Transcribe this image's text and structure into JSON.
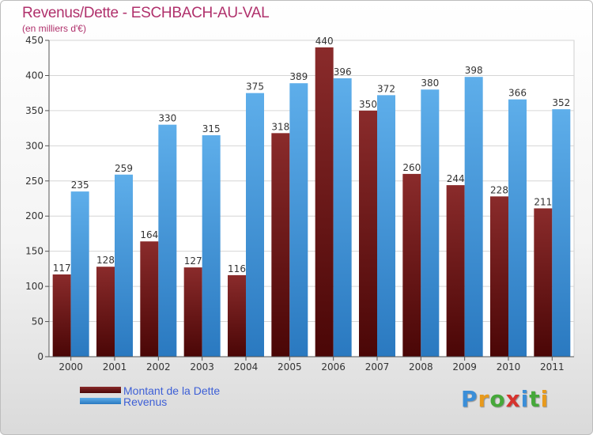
{
  "chart_data": {
    "type": "bar",
    "title": "Revenus/Dette - ESCHBACH-AU-VAL",
    "subtitle": "(en milliers d'€)",
    "categories": [
      "2000",
      "2001",
      "2002",
      "2003",
      "2004",
      "2005",
      "2006",
      "2007",
      "2008",
      "2009",
      "2010",
      "2011"
    ],
    "series": [
      {
        "name": "Montant de la Dette",
        "color": "#7a1f1f",
        "values": [
          117,
          128,
          164,
          127,
          116,
          318,
          440,
          350,
          260,
          244,
          228,
          211
        ]
      },
      {
        "name": "Revenus",
        "color": "#3f97d8",
        "values": [
          235,
          259,
          330,
          315,
          375,
          389,
          396,
          372,
          380,
          398,
          366,
          352
        ]
      }
    ],
    "ylim": [
      0,
      450
    ],
    "yticks": [
      0,
      50,
      100,
      150,
      200,
      250,
      300,
      350,
      400,
      450
    ],
    "grid": true,
    "legend_position": "bottom-left"
  },
  "logo": {
    "letters": [
      "P",
      "r",
      "o",
      "x",
      "i",
      "t",
      "i"
    ],
    "colors": [
      "#3a8ed8",
      "#e89a1c",
      "#46a83a",
      "#d6332e",
      "#3a8ed8",
      "#46a83a",
      "#e89a1c"
    ]
  }
}
